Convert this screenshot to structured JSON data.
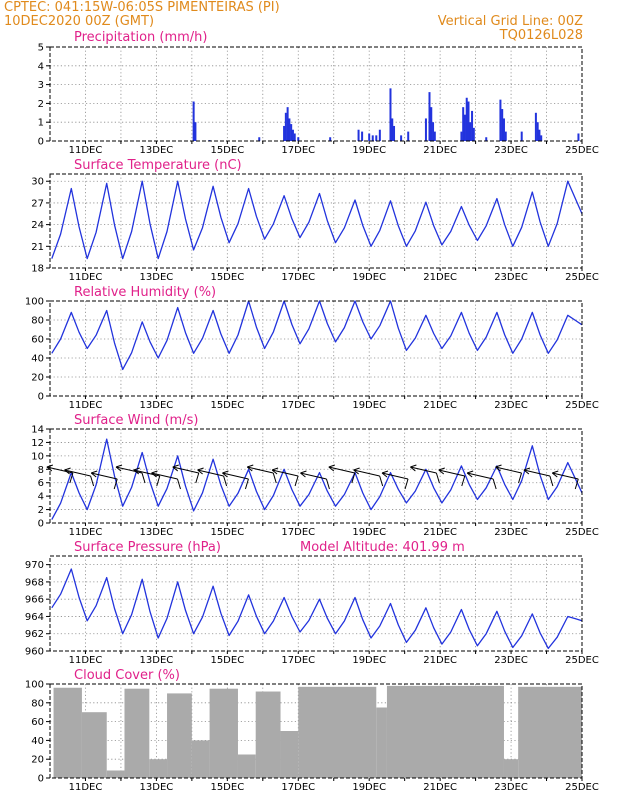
{
  "header": {
    "line1": "CPTEC:   041:15W-06:05S   PIMENTEIRAS (PI)",
    "line2": "10DEC2020 00Z (GMT)",
    "right1": "Vertical Grid Line: 00Z",
    "right2": "TQ0126L028"
  },
  "colors": {
    "header": "#e08a1c",
    "title": "#e0218a",
    "series": "#2233dd",
    "cloud": "#aaaaaa",
    "arrow": "#000000"
  },
  "chart_data": [
    {
      "type": "bar",
      "title": "Precipitation (mm/h)",
      "x_range_days": [
        10,
        25
      ],
      "ylim": [
        0,
        5
      ],
      "yticks": [
        "0",
        "1",
        "2",
        "3",
        "4",
        "5"
      ],
      "xticks": [
        "11DEC",
        "13DEC",
        "15DEC",
        "17DEC",
        "19DEC",
        "21DEC",
        "23DEC",
        "25DEC"
      ],
      "grid": true,
      "bars": [
        {
          "day": 14.05,
          "value": 2.1
        },
        {
          "day": 14.1,
          "value": 1.0
        },
        {
          "day": 14.5,
          "value": 0.05
        },
        {
          "day": 15.9,
          "value": 0.2
        },
        {
          "day": 16.6,
          "value": 0.8
        },
        {
          "day": 16.65,
          "value": 1.5
        },
        {
          "day": 16.7,
          "value": 1.8
        },
        {
          "day": 16.75,
          "value": 1.2
        },
        {
          "day": 16.8,
          "value": 0.9
        },
        {
          "day": 16.85,
          "value": 0.6
        },
        {
          "day": 16.9,
          "value": 0.4
        },
        {
          "day": 17.0,
          "value": 0.2
        },
        {
          "day": 17.9,
          "value": 0.2
        },
        {
          "day": 18.7,
          "value": 0.6
        },
        {
          "day": 18.8,
          "value": 0.5
        },
        {
          "day": 19.0,
          "value": 0.4
        },
        {
          "day": 19.1,
          "value": 0.3
        },
        {
          "day": 19.2,
          "value": 0.3
        },
        {
          "day": 19.3,
          "value": 0.6
        },
        {
          "day": 19.6,
          "value": 2.8
        },
        {
          "day": 19.65,
          "value": 1.2
        },
        {
          "day": 19.7,
          "value": 0.8
        },
        {
          "day": 19.9,
          "value": 0.3
        },
        {
          "day": 20.1,
          "value": 0.5
        },
        {
          "day": 20.6,
          "value": 1.2
        },
        {
          "day": 20.7,
          "value": 2.6
        },
        {
          "day": 20.75,
          "value": 1.8
        },
        {
          "day": 20.8,
          "value": 1.0
        },
        {
          "day": 20.85,
          "value": 0.5
        },
        {
          "day": 21.6,
          "value": 0.5
        },
        {
          "day": 21.65,
          "value": 1.8
        },
        {
          "day": 21.7,
          "value": 1.4
        },
        {
          "day": 21.75,
          "value": 2.3
        },
        {
          "day": 21.8,
          "value": 2.1
        },
        {
          "day": 21.85,
          "value": 1.0
        },
        {
          "day": 21.9,
          "value": 1.6
        },
        {
          "day": 21.95,
          "value": 0.7
        },
        {
          "day": 22.3,
          "value": 0.2
        },
        {
          "day": 22.7,
          "value": 2.2
        },
        {
          "day": 22.75,
          "value": 1.7
        },
        {
          "day": 22.8,
          "value": 1.2
        },
        {
          "day": 22.85,
          "value": 0.5
        },
        {
          "day": 23.3,
          "value": 0.5
        },
        {
          "day": 23.7,
          "value": 1.5
        },
        {
          "day": 23.75,
          "value": 1.0
        },
        {
          "day": 23.8,
          "value": 0.6
        },
        {
          "day": 23.85,
          "value": 0.3
        },
        {
          "day": 24.9,
          "value": 0.4
        }
      ]
    },
    {
      "type": "line",
      "title": "Surface Temperature (nC)",
      "x_range_days": [
        10,
        25
      ],
      "ylim": [
        18,
        31
      ],
      "yticks": [
        "18",
        "21",
        "24",
        "27",
        "30"
      ],
      "xticks": [
        "11DEC",
        "13DEC",
        "15DEC",
        "17DEC",
        "19DEC",
        "21DEC",
        "23DEC",
        "25DEC"
      ],
      "grid": true,
      "minima": [
        19.3,
        19.3,
        19.3,
        19.3,
        20.5,
        21.5,
        22.0,
        22.2,
        21.5,
        21.0,
        21.0,
        21.2,
        21.8,
        21.0,
        21.0
      ],
      "maxima": [
        29.0,
        29.7,
        30.0,
        30.0,
        29.3,
        29.0,
        28.0,
        28.3,
        27.4,
        27.3,
        27.1,
        26.5,
        27.6,
        28.5,
        30.0
      ],
      "end_value": 25.5
    },
    {
      "type": "line",
      "title": "Relative Humidity (%)",
      "x_range_days": [
        10,
        25
      ],
      "ylim": [
        0,
        100
      ],
      "yticks": [
        "0",
        "20",
        "40",
        "60",
        "80",
        "100"
      ],
      "xticks": [
        "11DEC",
        "13DEC",
        "15DEC",
        "17DEC",
        "19DEC",
        "21DEC",
        "23DEC",
        "25DEC"
      ],
      "grid": true,
      "minima": [
        45,
        50,
        28,
        40,
        45,
        45,
        50,
        55,
        57,
        60,
        48,
        50,
        48,
        45,
        45
      ],
      "maxima": [
        88,
        90,
        78,
        93,
        90,
        100,
        100,
        100,
        100,
        100,
        85,
        88,
        88,
        88,
        85
      ],
      "end_value": 75
    },
    {
      "type": "line",
      "title": "Surface Wind (m/s)",
      "x_range_days": [
        10,
        25
      ],
      "ylim": [
        0,
        14
      ],
      "yticks": [
        "0",
        "2",
        "4",
        "6",
        "8",
        "10",
        "12",
        "14"
      ],
      "xticks": [
        "11DEC",
        "13DEC",
        "15DEC",
        "17DEC",
        "19DEC",
        "21DEC",
        "23DEC",
        "25DEC"
      ],
      "grid": true,
      "minima": [
        0.5,
        2.0,
        2.5,
        2.5,
        1.8,
        2.5,
        2.0,
        2.5,
        2.5,
        2.0,
        3.0,
        3.0,
        3.5,
        3.5,
        3.5
      ],
      "maxima": [
        7.5,
        12.5,
        10.5,
        10.0,
        9.5,
        8.0,
        8.0,
        7.5,
        7.5,
        7.5,
        8.0,
        8.5,
        8.5,
        11.5,
        9.0
      ],
      "end_value": 4.5,
      "vector_days": [
        10.25,
        10.75,
        11.5,
        12.2,
        12.7,
        13.2,
        13.8,
        14.5,
        15.2,
        15.9,
        16.6,
        17.4,
        18.2,
        18.9,
        19.7,
        20.5,
        21.3,
        22.1,
        22.9,
        23.7,
        24.5
      ]
    },
    {
      "type": "line",
      "title": "Surface Pressure (hPa)",
      "annotation": "Model Altitude: 401.99 m",
      "x_range_days": [
        10,
        25
      ],
      "ylim": [
        960,
        971
      ],
      "yticks": [
        "960",
        "962",
        "964",
        "966",
        "968",
        "970"
      ],
      "xticks": [
        "11DEC",
        "13DEC",
        "15DEC",
        "17DEC",
        "19DEC",
        "21DEC",
        "23DEC",
        "25DEC"
      ],
      "grid": true,
      "minima": [
        965.0,
        963.5,
        962.0,
        961.5,
        962.0,
        961.8,
        962.0,
        962.2,
        962.0,
        961.5,
        961.0,
        960.8,
        960.6,
        960.4,
        960.3
      ],
      "maxima": [
        969.5,
        968.5,
        968.3,
        968.0,
        967.5,
        966.5,
        966.2,
        966.0,
        966.2,
        965.5,
        965.0,
        964.8,
        964.6,
        964.3,
        964.0
      ],
      "end_value": 963.5
    },
    {
      "type": "area",
      "title": "Cloud Cover (%)",
      "x_range_days": [
        10,
        25
      ],
      "ylim": [
        0,
        100
      ],
      "yticks": [
        "0",
        "20",
        "40",
        "60",
        "80",
        "100"
      ],
      "xticks": [
        "11DEC",
        "13DEC",
        "15DEC",
        "17DEC",
        "19DEC",
        "21DEC",
        "23DEC",
        "25DEC"
      ],
      "grid": true,
      "segments": [
        {
          "from": 10.1,
          "to": 10.9,
          "value": 96
        },
        {
          "from": 10.9,
          "to": 11.6,
          "value": 70
        },
        {
          "from": 11.6,
          "to": 12.1,
          "value": 8
        },
        {
          "from": 12.1,
          "to": 12.8,
          "value": 95
        },
        {
          "from": 12.8,
          "to": 13.3,
          "value": 20
        },
        {
          "from": 13.3,
          "to": 14.0,
          "value": 90
        },
        {
          "from": 14.0,
          "to": 14.5,
          "value": 40
        },
        {
          "from": 14.5,
          "to": 15.3,
          "value": 95
        },
        {
          "from": 15.3,
          "to": 15.8,
          "value": 25
        },
        {
          "from": 15.8,
          "to": 16.5,
          "value": 92
        },
        {
          "from": 16.5,
          "to": 17.0,
          "value": 50
        },
        {
          "from": 17.0,
          "to": 19.2,
          "value": 97
        },
        {
          "from": 19.2,
          "to": 19.5,
          "value": 75
        },
        {
          "from": 19.5,
          "to": 22.8,
          "value": 98
        },
        {
          "from": 22.8,
          "to": 23.2,
          "value": 20
        },
        {
          "from": 23.2,
          "to": 25.0,
          "value": 97
        }
      ]
    }
  ]
}
